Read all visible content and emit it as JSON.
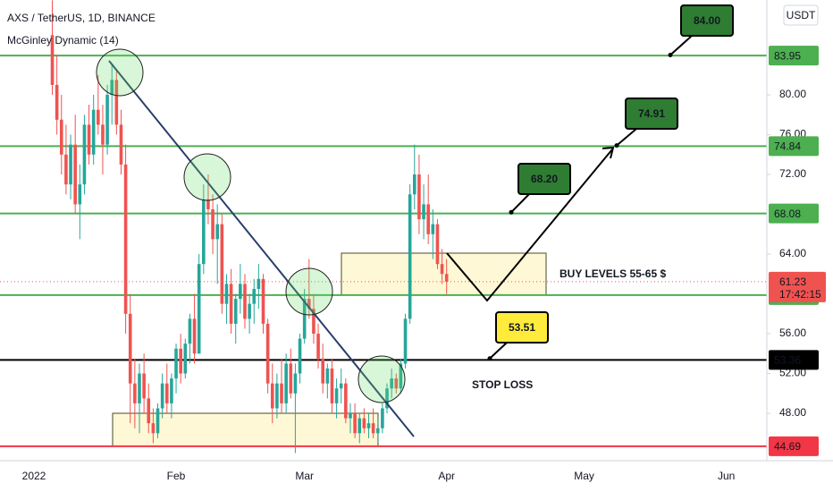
{
  "chart_data": {
    "type": "candlestick",
    "title": "AXS / TetherUS, 1D, BINANCE",
    "indicator": "McGinley Dynamic (14)",
    "currency": "USDT",
    "categories": [
      "2022",
      null,
      null,
      null,
      null,
      null,
      null,
      null,
      null,
      null,
      null,
      null,
      null,
      null,
      null,
      null,
      null,
      null,
      null,
      null,
      null,
      null,
      null,
      null,
      null,
      null,
      null,
      null,
      null,
      null,
      null,
      "Feb",
      null,
      null,
      null,
      null,
      null,
      null,
      null,
      null,
      null,
      null,
      null,
      null,
      null,
      null,
      null,
      null,
      null,
      null,
      null,
      null,
      null,
      null,
      null,
      null,
      null,
      null,
      null,
      "Mar",
      null,
      null,
      null,
      null,
      null,
      null,
      null,
      null,
      null,
      null,
      null,
      null,
      null,
      null,
      null,
      null,
      null,
      null,
      null,
      null,
      null,
      null,
      null,
      null,
      null,
      null,
      null,
      null,
      null,
      null,
      "Apr",
      null,
      null,
      null,
      null,
      null,
      null,
      null,
      null,
      null,
      null,
      null,
      null,
      null,
      null,
      null,
      null,
      null,
      null,
      null,
      null,
      null,
      null,
      null,
      null,
      null,
      null,
      null,
      null,
      null,
      "May",
      null,
      null,
      null,
      null,
      null,
      null,
      null,
      null,
      null,
      null,
      null,
      null,
      null,
      null,
      null,
      null,
      null,
      null,
      null,
      null,
      null,
      null,
      null,
      null,
      null,
      null,
      null,
      null,
      null,
      null,
      "Jun"
    ],
    "open": [
      null,
      null,
      null,
      null,
      86,
      81,
      77.5,
      74,
      71,
      75,
      69,
      71,
      77,
      74,
      78.5,
      77,
      75,
      80,
      81.5,
      77,
      73,
      58,
      51,
      49,
      52,
      49.5,
      47,
      46,
      48.5,
      51,
      49,
      51.5,
      54.5,
      52,
      55,
      57.5,
      54,
      63,
      69.5,
      68.5,
      65.5,
      67,
      59,
      61,
      57,
      59.5,
      61,
      57.5,
      59,
      60.5,
      61.5,
      57,
      51,
      48.5,
      51,
      49,
      53,
      50,
      52,
      55.5,
      59.5,
      58.5,
      56,
      53.5,
      51,
      52.5,
      49,
      50.5,
      51,
      47.5,
      48,
      46,
      47.5,
      46.5,
      47,
      46,
      46.5,
      48.5,
      50.5,
      51.5,
      50.5,
      53,
      57.5,
      70,
      72,
      67.5,
      69,
      66,
      67,
      63,
      62,
      null,
      null,
      null,
      null,
      null,
      null,
      null,
      null,
      null,
      null,
      null,
      null,
      null,
      null,
      null,
      null,
      null,
      null,
      null,
      null,
      null,
      null,
      null,
      null,
      null,
      null,
      null,
      null,
      null,
      null,
      null,
      null,
      null,
      null,
      null,
      null,
      null,
      null,
      null,
      null,
      null,
      null,
      null,
      null,
      null,
      null,
      null,
      null,
      null,
      null,
      null,
      null,
      null,
      null,
      null,
      null,
      null,
      null,
      null,
      null,
      null
    ],
    "high": [
      null,
      null,
      null,
      null,
      89.5,
      84,
      80,
      77,
      76,
      78,
      73,
      78,
      79,
      80,
      82,
      79,
      81,
      83,
      82.5,
      78.5,
      75,
      60,
      53.5,
      53,
      54,
      51,
      48.5,
      49,
      52,
      53,
      52,
      55,
      56,
      55.5,
      58,
      60,
      64,
      71,
      72,
      70,
      69,
      68,
      62,
      62.5,
      60,
      63,
      62,
      60,
      61.5,
      63,
      62,
      57.5,
      53,
      52,
      53.5,
      54,
      54.5,
      53,
      56,
      60.5,
      63.5,
      60,
      57,
      55,
      53,
      53.5,
      51.5,
      52.5,
      51.5,
      49,
      49,
      48,
      48.5,
      48,
      48.5,
      47.5,
      49,
      51,
      52.5,
      52,
      53.5,
      58,
      71,
      75,
      74,
      71,
      72,
      68.5,
      67.5,
      64.5,
      63.5,
      null,
      null,
      null,
      null,
      null,
      null,
      null,
      null,
      null,
      null,
      null,
      null,
      null,
      null,
      null,
      null,
      null,
      null,
      null,
      null,
      null,
      null,
      null,
      null,
      null,
      null,
      null,
      null,
      null,
      null,
      null,
      null,
      null,
      null,
      null,
      null,
      null,
      null,
      null,
      null,
      null,
      null,
      null,
      null,
      null,
      null,
      null,
      null,
      null,
      null,
      null,
      null,
      null,
      null,
      null,
      null,
      null,
      null,
      null,
      null,
      null
    ],
    "low": [
      null,
      null,
      null,
      null,
      80,
      76,
      72,
      70,
      69.5,
      68,
      65.5,
      70,
      73,
      73,
      76,
      72,
      74,
      77,
      76,
      72,
      56,
      47,
      46.5,
      46,
      48,
      46,
      45,
      45.5,
      47.5,
      48,
      47.5,
      50,
      51,
      51.5,
      53,
      53,
      54,
      62,
      67,
      64,
      61,
      58,
      57,
      56,
      55,
      58,
      56.5,
      56,
      57,
      58.5,
      56,
      50,
      47,
      47.5,
      48,
      48,
      49.5,
      44,
      51,
      55,
      57.5,
      55,
      52.5,
      50,
      49.5,
      48,
      47.5,
      49,
      47,
      46,
      45.5,
      45,
      46,
      45.5,
      45.5,
      45,
      46,
      48,
      49.5,
      50,
      50,
      52.5,
      57,
      68.5,
      66,
      65.5,
      65,
      63.5,
      62.5,
      61,
      60,
      null,
      null,
      null,
      null,
      null,
      null,
      null,
      null,
      null,
      null,
      null,
      null,
      null,
      null,
      null,
      null,
      null,
      null,
      null,
      null,
      null,
      null,
      null,
      null,
      null,
      null,
      null,
      null,
      null,
      null,
      null,
      null,
      null,
      null,
      null,
      null,
      null,
      null,
      null,
      null,
      null,
      null,
      null,
      null,
      null,
      null,
      null,
      null,
      null,
      null,
      null,
      null,
      null,
      null,
      null,
      null,
      null,
      null,
      null,
      null,
      null
    ],
    "close": [
      null,
      null,
      null,
      null,
      81,
      77.5,
      74,
      71,
      75,
      69,
      71,
      77,
      74,
      78.5,
      77,
      75,
      80,
      81.5,
      77,
      73,
      58,
      51,
      49,
      52,
      49.5,
      47,
      46,
      48.5,
      51,
      49,
      51.5,
      54.5,
      52,
      55,
      57.5,
      54,
      63,
      69.5,
      68.5,
      65.5,
      67,
      59,
      61,
      57,
      59.5,
      61,
      57.5,
      59,
      60.5,
      61.5,
      57,
      51,
      48.5,
      51,
      49,
      53,
      50,
      52,
      55.5,
      59.5,
      58.5,
      56,
      53.5,
      51,
      52.5,
      49,
      50.5,
      51,
      47.5,
      48,
      46,
      47.5,
      46.5,
      47,
      46,
      46.5,
      48.5,
      50.5,
      51.5,
      50.5,
      53,
      57.5,
      70,
      72,
      67.5,
      69,
      66,
      67,
      63,
      62,
      61.23,
      null,
      null,
      null,
      null,
      null,
      null,
      null,
      null,
      null,
      null,
      null,
      null,
      null,
      null,
      null,
      null,
      null,
      null,
      null,
      null,
      null,
      null,
      null,
      null,
      null,
      null,
      null,
      null,
      null,
      null,
      null,
      null,
      null,
      null,
      null,
      null,
      null,
      null,
      null,
      null,
      null,
      null,
      null,
      null,
      null,
      null,
      null,
      null,
      null,
      null,
      null,
      null,
      null,
      null,
      null,
      null,
      null,
      null,
      null,
      null,
      null
    ],
    "up_color": "#26a69a",
    "down_color": "#ef5350",
    "ylim": [
      43.24,
      89.53
    ],
    "yticks": [
      {
        "value": 48,
        "label": "48.00"
      },
      {
        "value": 52,
        "label": "52.00"
      },
      {
        "value": 56,
        "label": "56.00"
      },
      {
        "value": 64,
        "label": "64.00"
      },
      {
        "value": 72,
        "label": "72.00"
      },
      {
        "value": 76,
        "label": "76.00"
      },
      {
        "value": 80,
        "label": "80.00"
      }
    ],
    "levels": [
      {
        "price": 83.95,
        "color": "#4caf50"
      },
      {
        "price": 74.84,
        "color": "#4caf50"
      },
      {
        "price": 68.08,
        "color": "#4caf50"
      },
      {
        "price": 59.88,
        "color": "#4caf50"
      },
      {
        "price": 53.36,
        "color": "#000000"
      },
      {
        "price": 44.69,
        "color": "#f23645"
      }
    ],
    "last_price": {
      "value": 61.23,
      "countdown": "17:42:15",
      "color": "#ef5350"
    },
    "callouts": [
      {
        "value": 84,
        "label": "84.00",
        "color": "#2e7d32"
      },
      {
        "value": 74.91,
        "label": "74.91",
        "color": "#2e7d32"
      },
      {
        "value": 68.2,
        "label": "68.20",
        "color": "#2e7d32"
      },
      {
        "value": 53.51,
        "label": "53.51",
        "color": "#ffeb3b"
      }
    ],
    "annotations": [
      "BUY LEVELS 55-65 $",
      "STOP LOSS"
    ]
  }
}
